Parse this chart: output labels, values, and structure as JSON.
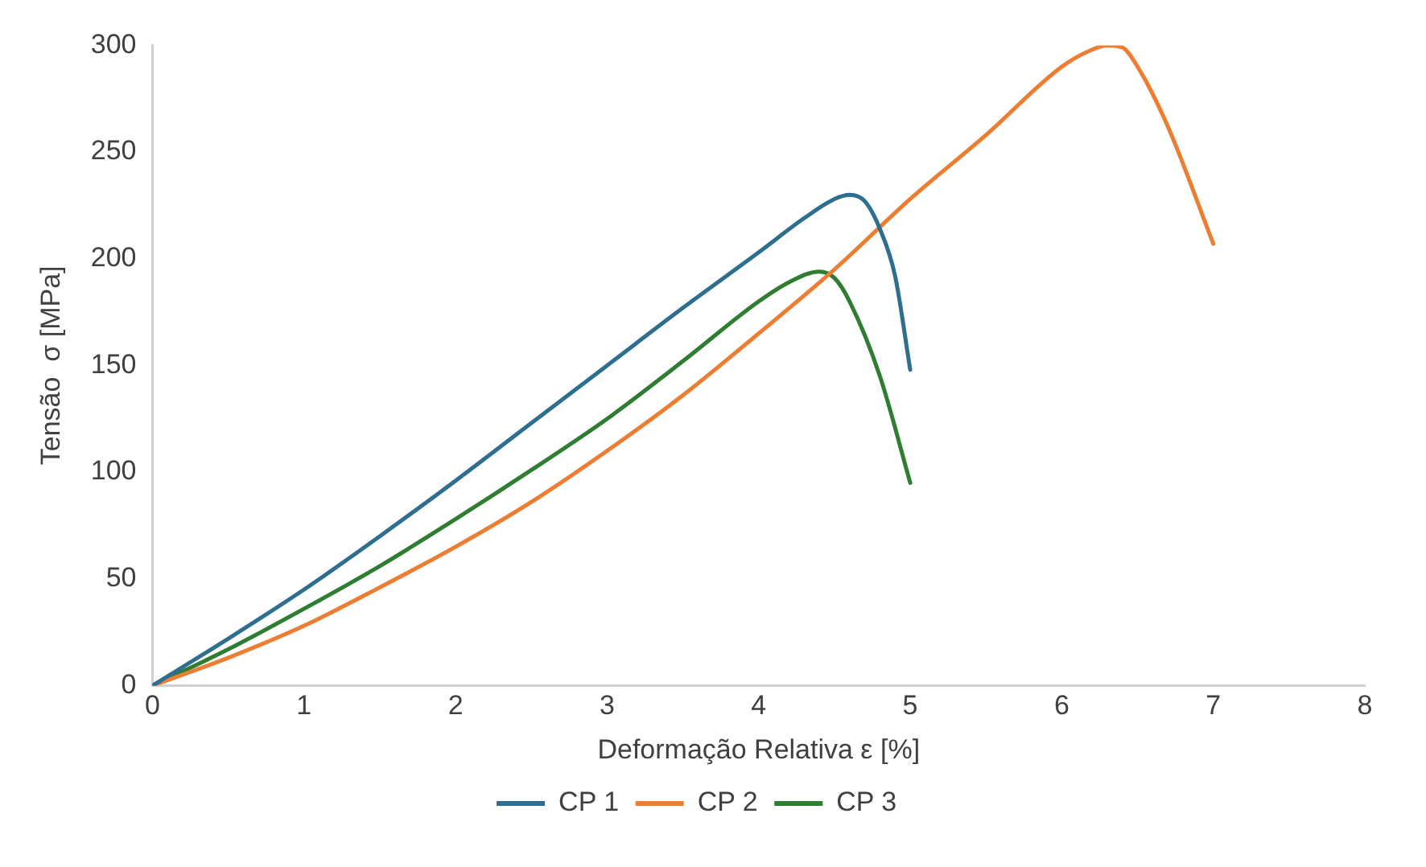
{
  "chart_data": {
    "type": "line",
    "xlabel": "Deformação Relativa ε [%]",
    "ylabel": "Tensão  σ [MPa]",
    "xlim": [
      0,
      8
    ],
    "xticks": [
      0,
      1,
      2,
      3,
      4,
      5,
      6,
      7,
      8
    ],
    "ylim": [
      0,
      300
    ],
    "yticks": [
      0,
      50,
      100,
      150,
      200,
      250,
      300
    ],
    "grid": false,
    "legend": "bottom",
    "marker": "none",
    "line_style": "solid",
    "series": [
      {
        "name": "CP 1",
        "color": "#2e6e8e",
        "x": [
          0,
          0.5,
          1,
          1.5,
          2,
          2.5,
          3,
          3.5,
          4,
          4.3,
          4.5,
          4.6,
          4.7,
          4.8,
          4.9,
          5.0
        ],
        "values": [
          0,
          22,
          45,
          70,
          96,
          123,
          150,
          177,
          203,
          219,
          228,
          230,
          227,
          214,
          192,
          148
        ]
      },
      {
        "name": "CP 2",
        "color": "#ed7d31",
        "x": [
          0,
          0.5,
          1,
          1.5,
          2,
          2.5,
          3,
          3.5,
          4,
          4.5,
          5,
          5.5,
          6,
          6.2,
          6.3,
          6.4,
          6.5,
          6.7,
          7.0
        ],
        "values": [
          0,
          13,
          28,
          46,
          65,
          86,
          110,
          136,
          165,
          195,
          228,
          258,
          290,
          298,
          300,
          299,
          290,
          262,
          207
        ]
      },
      {
        "name": "CP 3",
        "color": "#2e7d32",
        "x": [
          0,
          0.5,
          1,
          1.5,
          2,
          2.5,
          3,
          3.5,
          4,
          4.2,
          4.4,
          4.5,
          4.6,
          4.8,
          5.0
        ],
        "values": [
          0,
          17,
          36,
          56,
          78,
          101,
          125,
          152,
          180,
          189,
          194,
          191,
          180,
          145,
          95
        ]
      }
    ]
  }
}
